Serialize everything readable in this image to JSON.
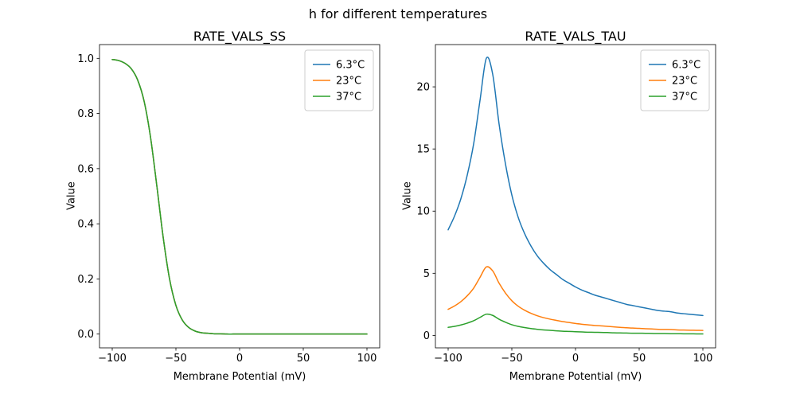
{
  "suptitle": "h for different temperatures",
  "accent_colors": {
    "blue": "#1f77b4",
    "orange": "#ff7f0e",
    "green": "#2ca02c"
  },
  "chart_data": [
    {
      "type": "line",
      "title": "RATE_VALS_SS",
      "xlabel": "Membrane Potential (mV)",
      "ylabel": "Value",
      "xlim": [
        -110,
        110
      ],
      "ylim": [
        -0.05,
        1.05
      ],
      "grid": false,
      "legend_position": "upper right",
      "xticks": {
        "values": [
          -100,
          -50,
          0,
          50,
          100
        ],
        "labels": [
          "−100",
          "−50",
          "0",
          "50",
          "100"
        ]
      },
      "yticks": {
        "values": [
          0,
          0.2,
          0.4,
          0.6,
          0.8,
          1.0
        ],
        "labels": [
          "0.0",
          "0.2",
          "0.4",
          "0.6",
          "0.8",
          "1.0"
        ]
      },
      "x": [
        -100,
        -95,
        -90,
        -85,
        -80,
        -75,
        -70,
        -65,
        -60,
        -55,
        -50,
        -45,
        -40,
        -35,
        -30,
        -25,
        -20,
        -15,
        -10,
        -5,
        0,
        5,
        10,
        15,
        20,
        25,
        30,
        35,
        40,
        45,
        50,
        55,
        60,
        65,
        70,
        75,
        80,
        85,
        90,
        95,
        100
      ],
      "series": [
        {
          "name": "6.3°C",
          "color": "#1f77b4",
          "y": [
            0.996,
            0.992,
            0.982,
            0.962,
            0.921,
            0.845,
            0.716,
            0.538,
            0.351,
            0.2,
            0.104,
            0.051,
            0.024,
            0.011,
            0.005,
            0.003,
            0.001,
            0.001,
            0.0,
            0.0,
            0.0,
            0.0,
            0.0,
            0.0,
            0.0,
            0.0,
            0.0,
            0.0,
            0.0,
            0.0,
            0.0,
            0.0,
            0.0,
            0.0,
            0.0,
            0.0,
            0.0,
            0.0,
            0.0,
            0.0,
            0.0
          ]
        },
        {
          "name": "23°C",
          "color": "#ff7f0e",
          "y": [
            0.996,
            0.992,
            0.982,
            0.962,
            0.921,
            0.845,
            0.716,
            0.538,
            0.351,
            0.2,
            0.104,
            0.051,
            0.024,
            0.011,
            0.005,
            0.003,
            0.001,
            0.001,
            0.0,
            0.0,
            0.0,
            0.0,
            0.0,
            0.0,
            0.0,
            0.0,
            0.0,
            0.0,
            0.0,
            0.0,
            0.0,
            0.0,
            0.0,
            0.0,
            0.0,
            0.0,
            0.0,
            0.0,
            0.0,
            0.0,
            0.0
          ]
        },
        {
          "name": "37°C",
          "color": "#2ca02c",
          "y": [
            0.996,
            0.992,
            0.982,
            0.962,
            0.921,
            0.845,
            0.716,
            0.538,
            0.351,
            0.2,
            0.104,
            0.051,
            0.024,
            0.011,
            0.005,
            0.003,
            0.001,
            0.001,
            0.0,
            0.0,
            0.0,
            0.0,
            0.0,
            0.0,
            0.0,
            0.0,
            0.0,
            0.0,
            0.0,
            0.0,
            0.0,
            0.0,
            0.0,
            0.0,
            0.0,
            0.0,
            0.0,
            0.0,
            0.0,
            0.0,
            0.0
          ]
        }
      ]
    },
    {
      "type": "line",
      "title": "RATE_VALS_TAU",
      "xlabel": "Membrane Potential (mV)",
      "ylabel": "Value",
      "xlim": [
        -110,
        110
      ],
      "ylim": [
        -1.0,
        23.4
      ],
      "grid": false,
      "legend_position": "upper right",
      "xticks": {
        "values": [
          -100,
          -50,
          0,
          50,
          100
        ],
        "labels": [
          "−100",
          "−50",
          "0",
          "50",
          "100"
        ]
      },
      "yticks": {
        "values": [
          0,
          5,
          10,
          15,
          20
        ],
        "labels": [
          "0",
          "5",
          "10",
          "15",
          "20"
        ]
      },
      "x": [
        -100,
        -95,
        -90,
        -85,
        -80,
        -75,
        -70,
        -65,
        -60,
        -55,
        -50,
        -45,
        -40,
        -35,
        -30,
        -25,
        -20,
        -15,
        -10,
        -5,
        0,
        5,
        10,
        15,
        20,
        25,
        30,
        35,
        40,
        45,
        50,
        55,
        60,
        65,
        70,
        75,
        80,
        85,
        90,
        95,
        100
      ],
      "series": [
        {
          "name": "6.3°C",
          "color": "#1f77b4",
          "y": [
            8.5,
            9.6,
            11.0,
            12.9,
            15.4,
            18.9,
            22.3,
            21.0,
            17.0,
            13.8,
            11.3,
            9.5,
            8.2,
            7.2,
            6.4,
            5.8,
            5.3,
            4.9,
            4.5,
            4.2,
            3.9,
            3.65,
            3.45,
            3.25,
            3.1,
            2.95,
            2.8,
            2.65,
            2.5,
            2.4,
            2.3,
            2.2,
            2.1,
            2.0,
            1.95,
            1.9,
            1.8,
            1.75,
            1.7,
            1.65,
            1.6
          ]
        },
        {
          "name": "23°C",
          "color": "#ff7f0e",
          "y": [
            2.1,
            2.37,
            2.72,
            3.19,
            3.8,
            4.67,
            5.51,
            5.19,
            4.2,
            3.41,
            2.79,
            2.35,
            2.03,
            1.78,
            1.58,
            1.43,
            1.31,
            1.21,
            1.11,
            1.04,
            0.96,
            0.9,
            0.85,
            0.8,
            0.77,
            0.73,
            0.69,
            0.65,
            0.62,
            0.59,
            0.57,
            0.54,
            0.52,
            0.49,
            0.48,
            0.47,
            0.44,
            0.43,
            0.42,
            0.41,
            0.4
          ]
        },
        {
          "name": "37°C",
          "color": "#2ca02c",
          "y": [
            0.65,
            0.73,
            0.84,
            0.99,
            1.18,
            1.45,
            1.71,
            1.61,
            1.3,
            1.06,
            0.86,
            0.73,
            0.63,
            0.55,
            0.49,
            0.44,
            0.41,
            0.37,
            0.34,
            0.32,
            0.3,
            0.28,
            0.26,
            0.25,
            0.24,
            0.23,
            0.21,
            0.2,
            0.19,
            0.18,
            0.18,
            0.17,
            0.16,
            0.15,
            0.15,
            0.14,
            0.14,
            0.13,
            0.13,
            0.12,
            0.12
          ]
        }
      ]
    }
  ]
}
